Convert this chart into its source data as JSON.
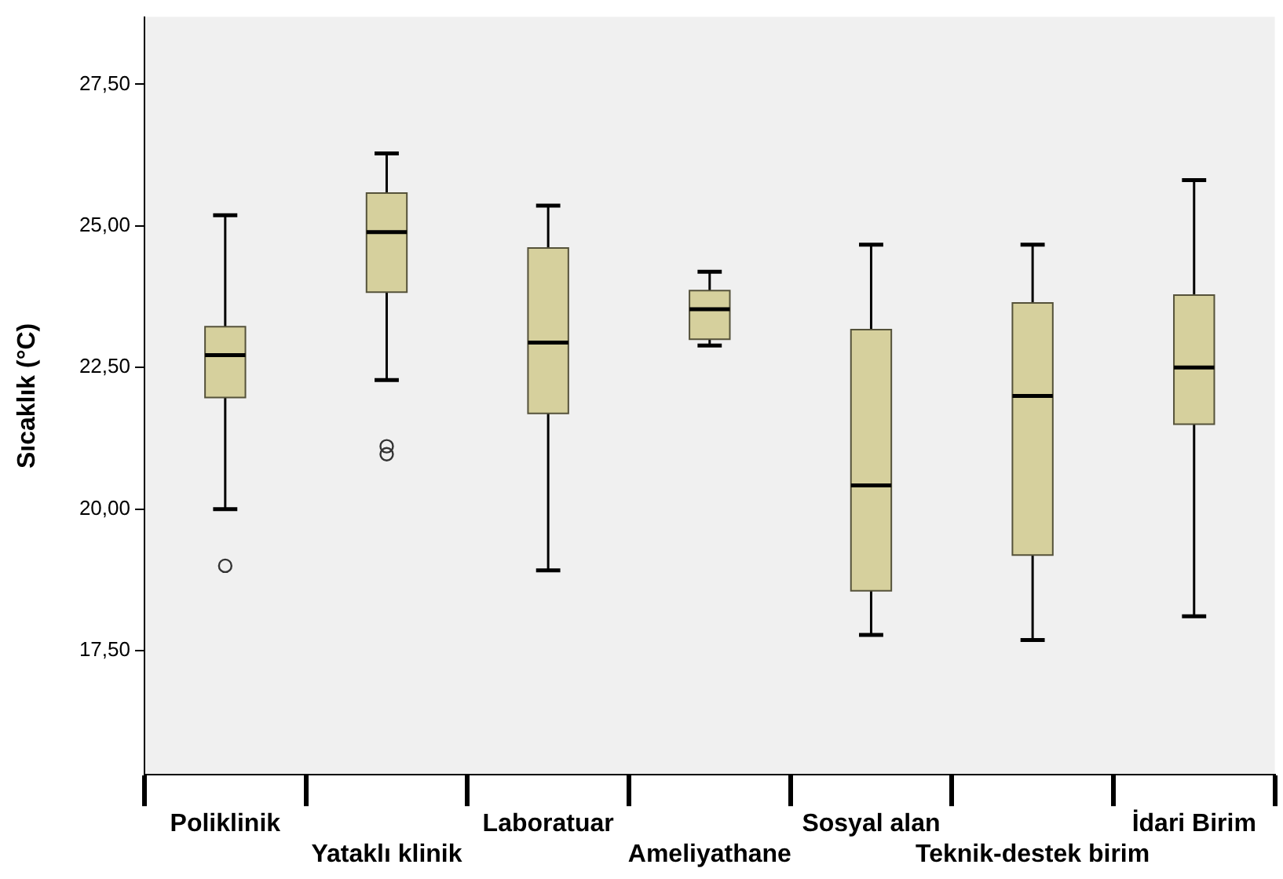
{
  "chart_data": {
    "type": "box",
    "ylabel": "Sıcaklık (°C)",
    "categories": [
      "Poliklinik",
      "Yataklı klinik",
      "Laboratuar",
      "Ameliyathane",
      "Sosyal alan",
      "Teknik-destek birim",
      "İdari Birim"
    ],
    "color": "#d6d09d",
    "boxes": [
      {
        "low": 20.0,
        "q1": 21.97,
        "median": 22.72,
        "q3": 23.22,
        "high": 25.19,
        "outliers": [
          19.0
        ]
      },
      {
        "low": 22.28,
        "q1": 23.83,
        "median": 24.89,
        "q3": 25.58,
        "high": 26.28,
        "outliers": [
          21.11,
          20.97
        ]
      },
      {
        "low": 18.92,
        "q1": 21.69,
        "median": 22.94,
        "q3": 24.61,
        "high": 25.36
      },
      {
        "low": 22.89,
        "q1": 23.0,
        "median": 23.53,
        "q3": 23.86,
        "high": 24.19
      },
      {
        "low": 17.78,
        "q1": 18.56,
        "median": 20.42,
        "q3": 23.17,
        "high": 24.67
      },
      {
        "low": 17.69,
        "q1": 19.19,
        "median": 22.0,
        "q3": 23.64,
        "high": 24.67
      },
      {
        "low": 18.11,
        "q1": 21.5,
        "median": 22.5,
        "q3": 23.78,
        "high": 25.81
      }
    ],
    "ylim": [
      15.31,
      28.69
    ],
    "yticks": [
      {
        "value": 17.5,
        "label": "17,50"
      },
      {
        "value": 20,
        "label": "20,00"
      },
      {
        "value": 22.5,
        "label": "22,50"
      },
      {
        "value": 25,
        "label": "25,00"
      },
      {
        "value": 27.5,
        "label": "27,50"
      }
    ]
  }
}
